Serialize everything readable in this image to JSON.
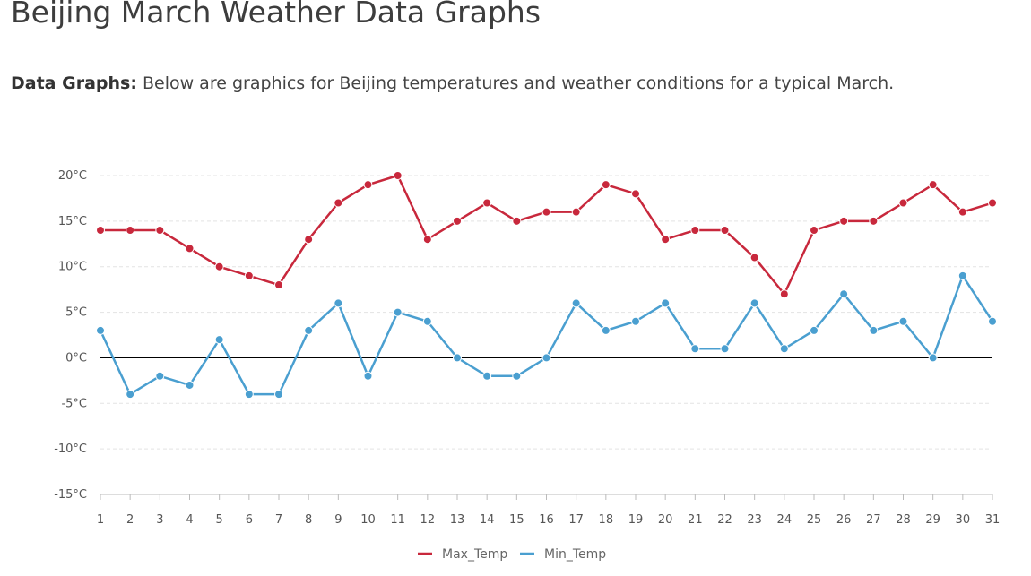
{
  "page": {
    "title": "Beijing March Weather Data Graphs",
    "intro_label": "Data Graphs:",
    "intro_text": " Below are graphics for Beijing temperatures and weather conditions for a typical March."
  },
  "chart_data": {
    "type": "line",
    "title": "",
    "xlabel": "",
    "ylabel": "",
    "x": [
      1,
      2,
      3,
      4,
      5,
      6,
      7,
      8,
      9,
      10,
      11,
      12,
      13,
      14,
      15,
      16,
      17,
      18,
      19,
      20,
      21,
      22,
      23,
      24,
      25,
      26,
      27,
      28,
      29,
      30,
      31
    ],
    "ylim": [
      -15,
      20
    ],
    "yticks": [
      20,
      15,
      10,
      5,
      0,
      -5,
      -10,
      -15
    ],
    "ytick_labels": [
      "20°C",
      "15°C",
      "10°C",
      "5°C",
      "0°C",
      "-5°C",
      "-10°C",
      "-15°C"
    ],
    "grid": true,
    "legend_position": "bottom-center",
    "series": [
      {
        "name": "Max_Temp",
        "color": "#c8283c",
        "values": [
          14,
          14,
          14,
          12,
          10,
          9,
          8,
          13,
          17,
          19,
          20,
          13,
          15,
          17,
          15,
          16,
          16,
          19,
          18,
          13,
          14,
          14,
          11,
          7,
          14,
          15,
          15,
          17,
          19,
          16,
          17
        ]
      },
      {
        "name": "Min_Temp",
        "color": "#4a9fd0",
        "values": [
          3,
          -4,
          -2,
          -3,
          2,
          -4,
          -4,
          3,
          6,
          -2,
          5,
          4,
          0,
          -2,
          -2,
          0,
          6,
          3,
          4,
          6,
          1,
          1,
          6,
          1,
          3,
          7,
          3,
          4,
          0,
          9,
          4
        ]
      }
    ]
  }
}
